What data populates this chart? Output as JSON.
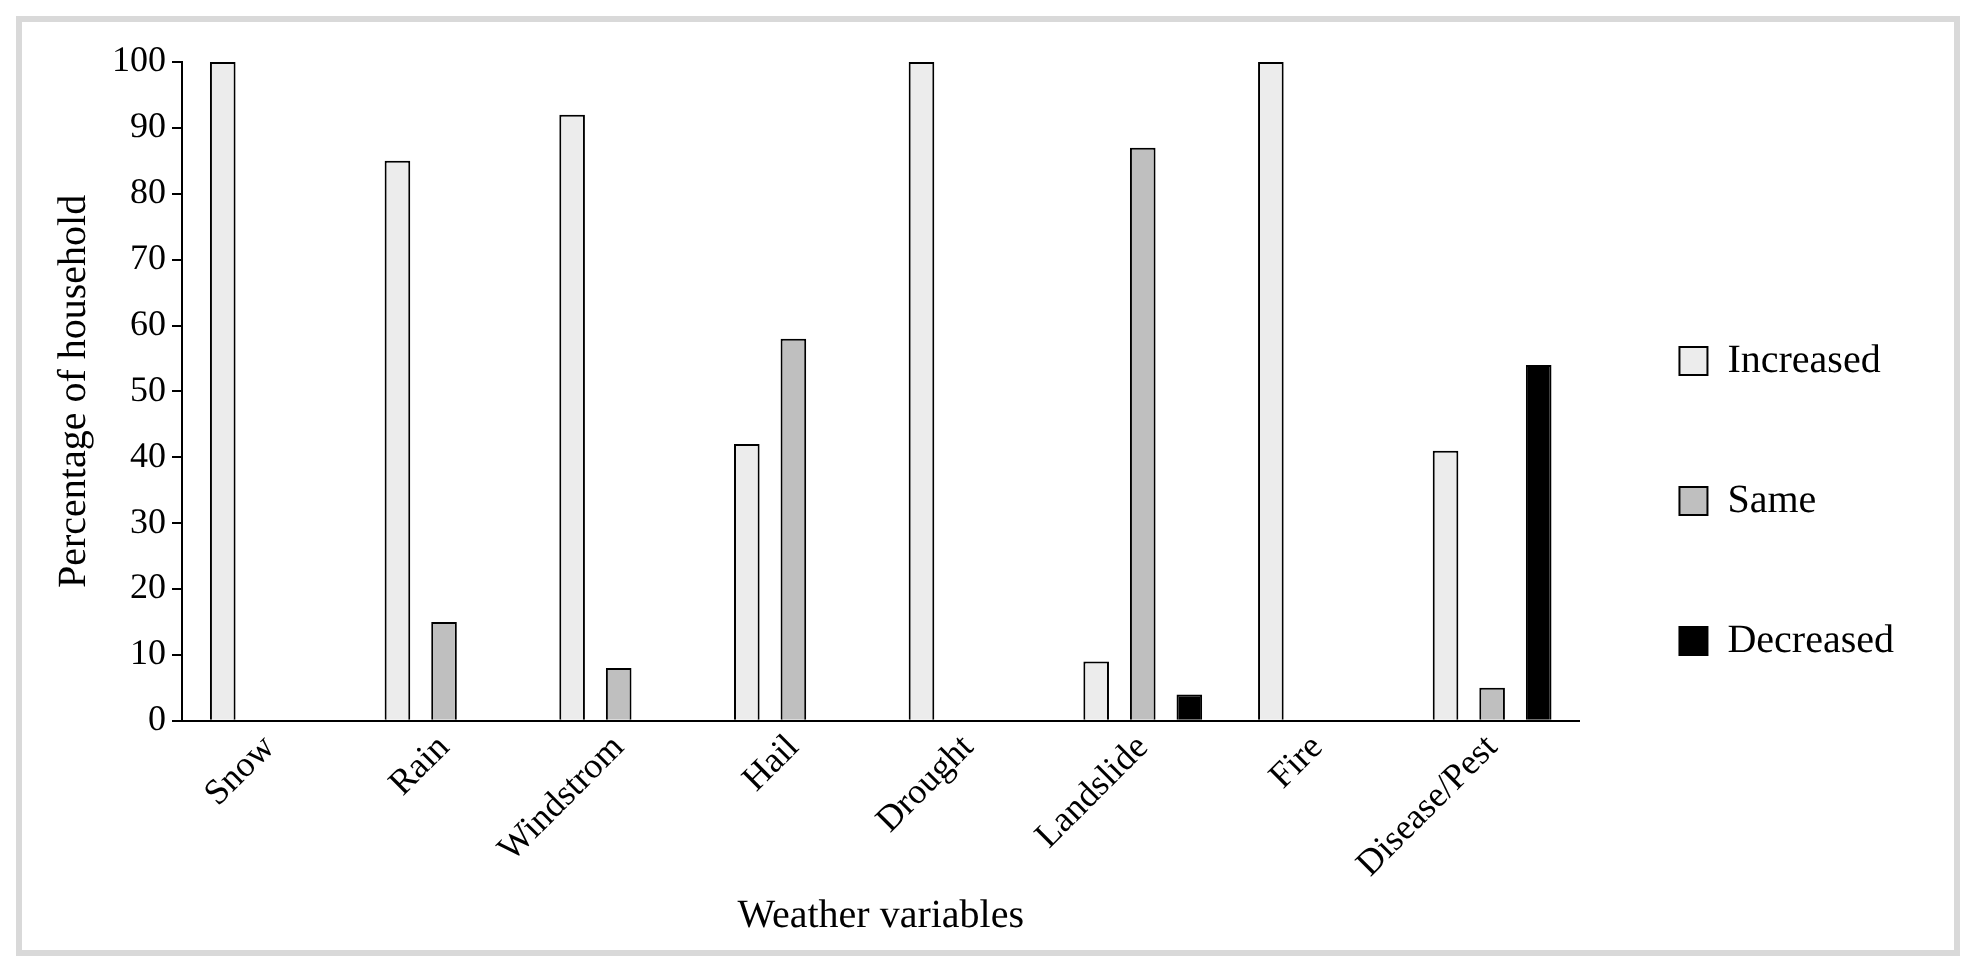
{
  "chart_data": {
    "type": "bar",
    "xlabel": "Weather variables",
    "ylabel": "Percentage of household",
    "categories": [
      "Snow",
      "Rain",
      "Windstrom",
      "Hail",
      "Drought",
      "Landslide",
      "Fire",
      "Disease/Pest"
    ],
    "series": [
      {
        "name": "Increased",
        "color": "#ececec",
        "values": [
          100,
          85,
          92,
          42,
          100,
          9,
          100,
          41
        ]
      },
      {
        "name": "Same",
        "color": "#bfbfbf",
        "values": [
          null,
          15,
          8,
          58,
          null,
          87,
          null,
          5
        ]
      },
      {
        "name": "Decreased",
        "color": "#000000",
        "values": [
          null,
          null,
          null,
          null,
          null,
          4,
          null,
          54
        ]
      }
    ],
    "ylim": [
      0,
      100
    ],
    "yticks": [
      0,
      10,
      20,
      30,
      40,
      50,
      60,
      70,
      80,
      90,
      100
    ],
    "grid": false,
    "legend": "right"
  }
}
